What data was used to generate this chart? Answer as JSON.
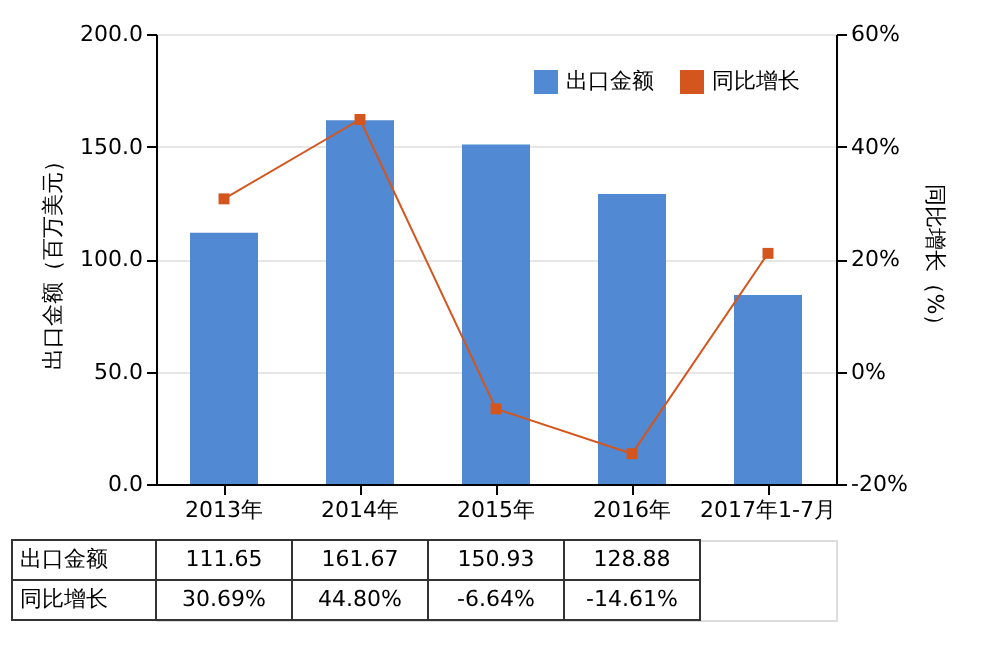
{
  "chart_data": {
    "type": "bar",
    "categories": [
      "2013年",
      "2014年",
      "2015年",
      "2016年",
      "2017年1-7月"
    ],
    "ylabel": "出口金额（百万美元）",
    "y2label": "同比增长（%）",
    "ylim": [
      0,
      200
    ],
    "yticks": [
      {
        "value": 0,
        "label": "0.0"
      },
      {
        "value": 50,
        "label": "50.0"
      },
      {
        "value": 100,
        "label": "100.0"
      },
      {
        "value": 150,
        "label": "150.0"
      },
      {
        "value": 200,
        "label": "200.0"
      }
    ],
    "y2lim": [
      -20,
      60
    ],
    "y2ticks": [
      {
        "value": -20,
        "label": "-20%"
      },
      {
        "value": 0,
        "label": "0%"
      },
      {
        "value": 20,
        "label": "20%"
      },
      {
        "value": 40,
        "label": "40%"
      },
      {
        "value": 60,
        "label": "60%"
      }
    ],
    "grid": "y",
    "legend": "top right",
    "series": [
      {
        "name": "出口金额",
        "color": "#5189d2",
        "values": [
          111.65,
          161.67,
          150.93,
          128.88,
          84
        ],
        "value_labels": [
          "111.65",
          "161.67",
          "150.93",
          "128.88",
          null
        ]
      },
      {
        "name": "同比增长",
        "type": "line",
        "axis": "y2",
        "color": "#d4561e",
        "marker": "square",
        "values": [
          30.69,
          44.8,
          -6.64,
          -14.61,
          21
        ],
        "value_labels": [
          "30.69%",
          "44.80%",
          "-6.64%",
          "-14.61%",
          null
        ]
      }
    ]
  }
}
